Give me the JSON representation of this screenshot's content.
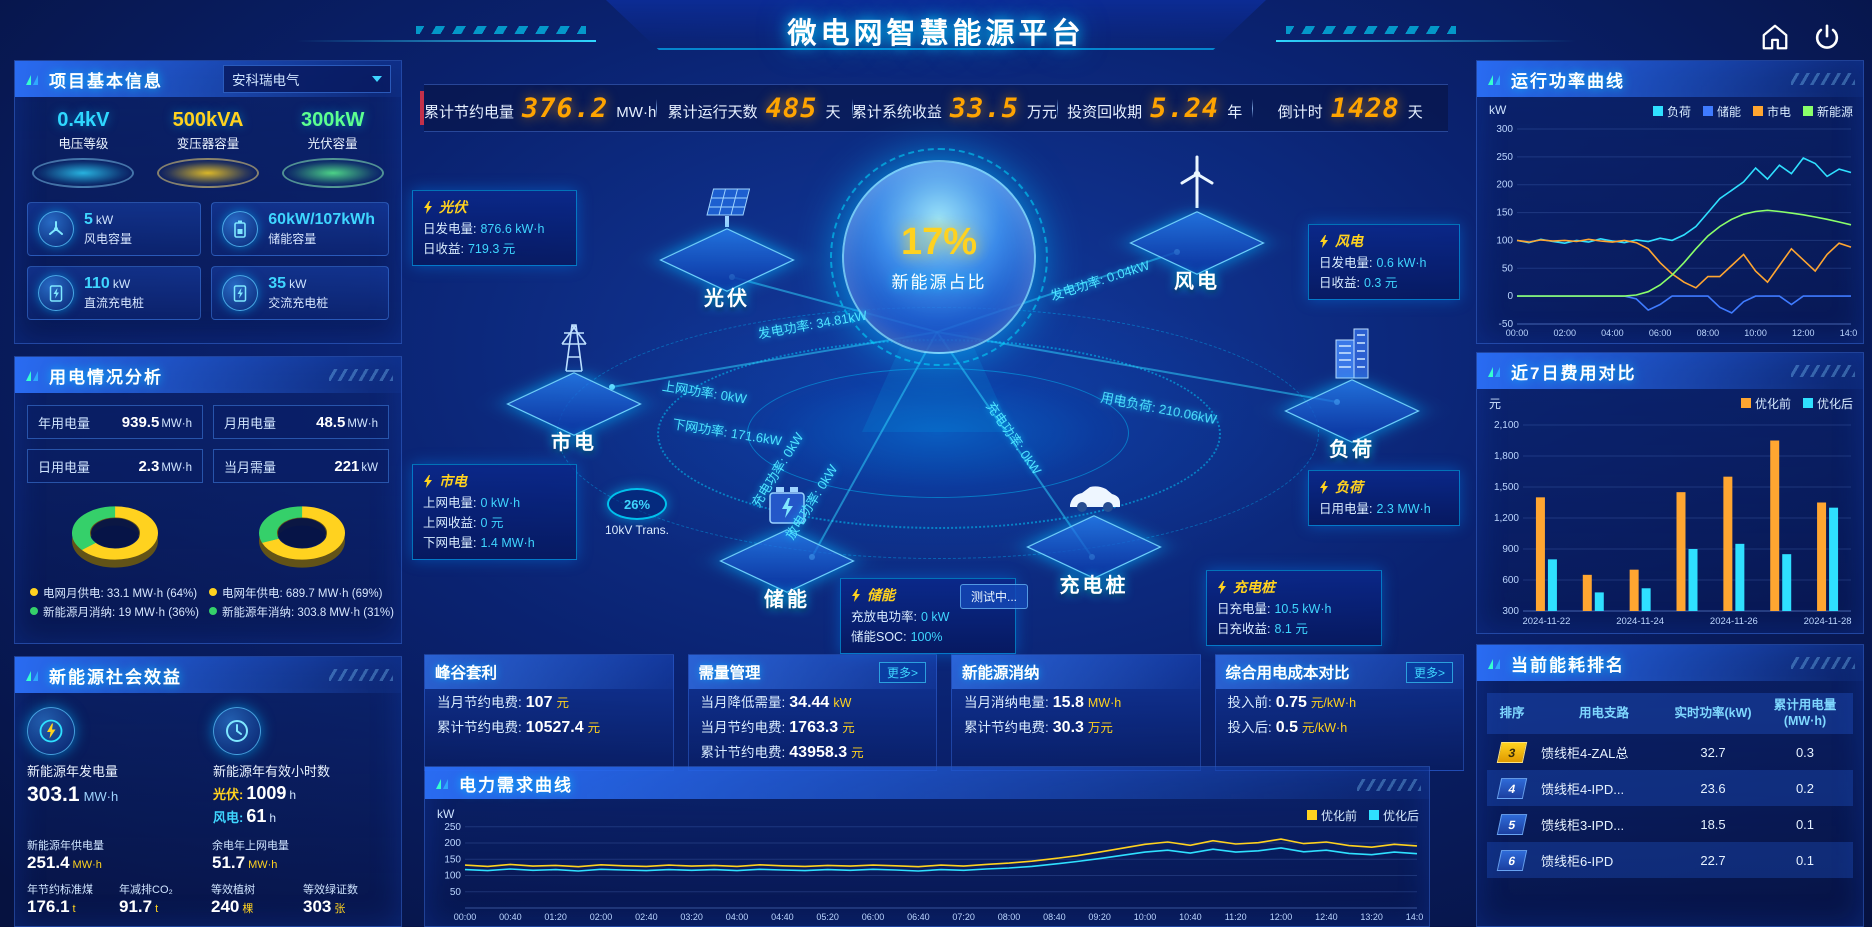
{
  "app": {
    "title": "微电网智慧能源平台"
  },
  "colors": {
    "accent_cyan": "#2fe0ff",
    "accent_yellow": "#ffd21f",
    "accent_orange": "#ffa631",
    "accent_green": "#8aff6a",
    "value_orange": "#ffa400",
    "panel_blue": "#2d73ff",
    "red_accent": "#c2304a"
  },
  "topbar": {
    "items": [
      {
        "label": "累计节约电量",
        "value": "376.2",
        "unit": "MW·h"
      },
      {
        "label": "累计运行天数",
        "value": "485",
        "unit": "天"
      },
      {
        "label": "累计系统收益",
        "value": "33.5",
        "unit": "万元"
      },
      {
        "label": "投资回收期",
        "value": "5.24",
        "unit": "年"
      },
      {
        "label": "倒计时",
        "value": "1428",
        "unit": "天"
      }
    ]
  },
  "left": {
    "basic": {
      "title": "项目基本信息",
      "company": "安科瑞电气",
      "pedestals": [
        {
          "value": "0.4kV",
          "label": "电压等级",
          "color": "#2fd8ff"
        },
        {
          "value": "500kVA",
          "label": "变压器容量",
          "color": "#ffd21f"
        },
        {
          "value": "300kW",
          "label": "光伏容量",
          "color": "#5dff8f"
        }
      ],
      "stats": [
        {
          "value": "5",
          "unit": "kW",
          "label": "风电容量"
        },
        {
          "value": "60kW/107kWh",
          "unit": "",
          "label": "储能容量"
        },
        {
          "value": "110",
          "unit": "kW",
          "label": "直流充电桩"
        },
        {
          "value": "35",
          "unit": "kW",
          "label": "交流充电桩"
        }
      ]
    },
    "usage": {
      "title": "用电情况分析",
      "stats": [
        {
          "label": "年用电量",
          "value": "939.5",
          "unit": "MW·h"
        },
        {
          "label": "月用电量",
          "value": "48.5",
          "unit": "MW·h"
        },
        {
          "label": "日用电量",
          "value": "2.3",
          "unit": "MW·h"
        },
        {
          "label": "当月需量",
          "value": "221",
          "unit": "kW"
        }
      ]
    },
    "benefit": {
      "title": "新能源社会效益",
      "gen": {
        "label": "新能源年发电量",
        "value": "303.1",
        "unit": "MW·h"
      },
      "hours": {
        "label": "新能源年有效小时数",
        "rows": [
          {
            "k": "光伏:",
            "v": "1009",
            "u": "h"
          },
          {
            "k": "风电:",
            "v": "61",
            "u": "h"
          }
        ]
      },
      "metrics": [
        {
          "label": "新能源年供电量",
          "value": "251.4",
          "unit": "MW·h"
        },
        {
          "label": "余电年上网电量",
          "value": "51.7",
          "unit": "MW·h"
        },
        {
          "label": "年节约标准煤",
          "value": "176.1",
          "unit": "t"
        },
        {
          "label": "年减排CO₂",
          "value": "91.7",
          "unit": "t"
        },
        {
          "label": "等效植树",
          "value": "240",
          "unit": "棵"
        },
        {
          "label": "等效绿证数",
          "value": "303",
          "unit": "张"
        }
      ]
    }
  },
  "center": {
    "ratio": {
      "value": "17%",
      "label": "新能源占比"
    },
    "nodes": {
      "pv": "光伏",
      "wind": "风电",
      "grid": "市电",
      "storage": "储能",
      "charger": "充电桩",
      "load": "负荷"
    },
    "cards": {
      "pv": {
        "title": "光伏",
        "rows": [
          {
            "k": "日发电量:",
            "v": "876.6 kW·h"
          },
          {
            "k": "日收益:",
            "v": "719.3 元"
          }
        ]
      },
      "wind": {
        "title": "风电",
        "rows": [
          {
            "k": "日发电量:",
            "v": "0.6 kW·h"
          },
          {
            "k": "日收益:",
            "v": "0.3 元"
          }
        ]
      },
      "grid": {
        "title": "市电",
        "rows": [
          {
            "k": "上网电量:",
            "v": "0 kW·h"
          },
          {
            "k": "上网收益:",
            "v": "0 元"
          },
          {
            "k": "下网电量:",
            "v": "1.4 MW·h"
          }
        ]
      },
      "storage": {
        "title": "储能",
        "rows": [
          {
            "k": "充放电功率:",
            "v": "0 kW"
          },
          {
            "k": "储能SOC:",
            "v": "100%"
          }
        ]
      },
      "charger": {
        "title": "充电桩",
        "rows": [
          {
            "k": "日充电量:",
            "v": "10.5 kW·h"
          },
          {
            "k": "日充收益:",
            "v": "8.1 元"
          }
        ]
      },
      "load": {
        "title": "负荷",
        "rows": [
          {
            "k": "日用电量:",
            "v": "2.3 MW·h"
          }
        ]
      }
    },
    "flows": {
      "pv_gen": "发电功率: 34.81kW",
      "grid_up": "上网功率: 0kW",
      "grid_down": "下网功率: 171.6kW",
      "wind_gen": "发电功率: 0.04kW",
      "load_use": "用电负荷: 210.06kW",
      "storage_charge": "充电功率: 0kW",
      "storage_discharge": "放电功率: 0kW",
      "charger_charge": "充电功率: 0kW"
    },
    "transformer": {
      "percent": "26%",
      "label": "10kV Trans."
    },
    "testing_badge": "测试中...",
    "summary_cards": [
      {
        "title": "峰谷套利",
        "more": "",
        "rows": [
          {
            "k": "当月节约电费:",
            "v": "107",
            "u": "元"
          },
          {
            "k": "累计节约电费:",
            "v": "10527.4",
            "u": "元"
          }
        ]
      },
      {
        "title": "需量管理",
        "more": "更多>",
        "rows": [
          {
            "k": "当月降低需量:",
            "v": "34.44",
            "u": "kW"
          },
          {
            "k": "当月节约电费:",
            "v": "1763.3",
            "u": "元"
          },
          {
            "k": "累计节约电费:",
            "v": "43958.3",
            "u": "元"
          }
        ]
      },
      {
        "title": "新能源消纳",
        "more": "",
        "rows": [
          {
            "k": "当月消纳电量:",
            "v": "15.8",
            "u": "MW·h"
          },
          {
            "k": "累计节约电费:",
            "v": "30.3",
            "u": "万元"
          }
        ]
      },
      {
        "title": "综合用电成本对比",
        "more": "更多>",
        "rows": [
          {
            "k": "投入前:",
            "v": "0.75",
            "u": "元/kW·h"
          },
          {
            "k": "投入后:",
            "v": "0.5",
            "u": "元/kW·h"
          }
        ]
      }
    ]
  },
  "right": {
    "rank": {
      "title": "当前能耗排名",
      "headers": [
        "排序",
        "用电支路",
        "实时功率(kW)",
        "累计用电量(MW·h)"
      ],
      "rows": [
        {
          "rank": "3",
          "branch": "馈线柜4-ZAL总",
          "power": "32.7",
          "energy": "0.3"
        },
        {
          "rank": "4",
          "branch": "馈线柜4-IPD...",
          "power": "23.6",
          "energy": "0.2"
        },
        {
          "rank": "5",
          "branch": "馈线柜3-IPD...",
          "power": "18.5",
          "energy": "0.1"
        },
        {
          "rank": "6",
          "branch": "馈线柜6-IPD",
          "power": "22.7",
          "energy": "0.1"
        }
      ]
    }
  },
  "chart_data": [
    {
      "id": "run-power",
      "type": "line",
      "title": "运行功率曲线",
      "ylabel": "kW",
      "ylim": [
        -50,
        300
      ],
      "yticks": [
        -50,
        0,
        50,
        100,
        150,
        200,
        250,
        300
      ],
      "xticks": [
        "00:00",
        "02:00",
        "04:00",
        "06:00",
        "08:00",
        "10:00",
        "12:00",
        "14:00"
      ],
      "legend_position": "top-right",
      "grid": true,
      "series": [
        {
          "name": "负荷",
          "color": "#2fe0ff",
          "values": [
            100,
            96,
            102,
            98,
            95,
            100,
            97,
            103,
            99,
            96,
            101,
            98,
            104,
            100,
            110,
            125,
            150,
            175,
            190,
            205,
            230,
            210,
            235,
            220,
            248,
            238,
            215,
            228,
            222
          ]
        },
        {
          "name": "储能",
          "color": "#3f7bff",
          "values": [
            0,
            0,
            0,
            0,
            0,
            0,
            0,
            0,
            0,
            0,
            -5,
            -25,
            -15,
            0,
            0,
            0,
            0,
            -20,
            -30,
            -10,
            0,
            0,
            0,
            -15,
            0,
            0,
            0,
            0,
            0
          ]
        },
        {
          "name": "市电",
          "color": "#ffa631",
          "values": [
            100,
            97,
            101,
            99,
            100,
            98,
            102,
            99,
            97,
            100,
            96,
            85,
            60,
            40,
            25,
            15,
            35,
            35,
            55,
            75,
            45,
            25,
            55,
            85,
            65,
            45,
            75,
            95,
            88
          ]
        },
        {
          "name": "新能源",
          "color": "#8aff6a",
          "values": [
            0,
            0,
            0,
            0,
            0,
            0,
            0,
            0,
            0,
            0,
            2,
            8,
            20,
            38,
            60,
            85,
            108,
            125,
            138,
            147,
            152,
            154,
            152,
            149,
            146,
            142,
            138,
            133,
            128
          ]
        }
      ]
    },
    {
      "id": "cost-7d",
      "type": "bar",
      "title": "近7日费用对比",
      "ylabel": "元",
      "ybase": 300,
      "ymax": 2100,
      "yticks": [
        {
          "v": 300,
          "t": "300"
        },
        {
          "v": 600,
          "t": "600"
        },
        {
          "v": 900,
          "t": "900"
        },
        {
          "v": 1200,
          "t": "1,200"
        },
        {
          "v": 1500,
          "t": "1,500"
        },
        {
          "v": 1800,
          "t": "1,800"
        },
        {
          "v": 2100,
          "t": "2,100"
        }
      ],
      "categories": [
        "2024-11-22",
        "2024-11-23",
        "2024-11-24",
        "2024-11-25",
        "2024-11-26",
        "2024-11-27",
        "2024-11-28"
      ],
      "xtick_idx": [
        0,
        2,
        4,
        6
      ],
      "legend_position": "top-right",
      "grid": true,
      "series": [
        {
          "name": "优化前",
          "color": "#ffa631",
          "values": [
            1400,
            650,
            700,
            1450,
            1600,
            1950,
            1350
          ]
        },
        {
          "name": "优化后",
          "color": "#2fe0ff",
          "values": [
            800,
            480,
            520,
            900,
            950,
            850,
            1300
          ]
        }
      ]
    },
    {
      "id": "demand",
      "type": "line",
      "title": "电力需求曲线",
      "ylabel": "kW",
      "ylim": [
        0,
        280
      ],
      "yticks": [
        50,
        100,
        150,
        200,
        250
      ],
      "xticks": [
        "00:00",
        "00:40",
        "01:20",
        "02:00",
        "02:40",
        "03:20",
        "04:00",
        "04:40",
        "05:20",
        "06:00",
        "06:40",
        "07:20",
        "08:00",
        "08:40",
        "09:20",
        "10:00",
        "10:40",
        "11:20",
        "12:00",
        "12:40",
        "13:20",
        "14:00"
      ],
      "legend_position": "top-right",
      "grid": true,
      "series": [
        {
          "name": "优化前",
          "color": "#ffd21f",
          "values": [
            132,
            128,
            134,
            129,
            131,
            127,
            133,
            130,
            128,
            132,
            129,
            131,
            128,
            133,
            130,
            128,
            131,
            129,
            132,
            130,
            127,
            132,
            129,
            134,
            138,
            144,
            152,
            161,
            172,
            184,
            196,
            203,
            193,
            207,
            197,
            201,
            212,
            198,
            203,
            192,
            187,
            196,
            191
          ]
        },
        {
          "name": "优化后",
          "color": "#2fe0ff",
          "values": [
            118,
            115,
            120,
            116,
            118,
            114,
            119,
            117,
            115,
            118,
            116,
            118,
            115,
            119,
            117,
            115,
            118,
            116,
            119,
            117,
            114,
            118,
            116,
            120,
            123,
            128,
            135,
            143,
            152,
            162,
            172,
            178,
            169,
            181,
            172,
            176,
            185,
            173,
            178,
            168,
            164,
            172,
            167
          ]
        }
      ]
    },
    {
      "id": "month-donut",
      "type": "pie",
      "slices": [
        {
          "name": "电网月供电",
          "value": 33.1,
          "unit": "MW·h",
          "percent": 64,
          "color": "#ffd21f",
          "label": "电网月供电: 33.1 MW·h (64%)"
        },
        {
          "name": "新能源月消纳",
          "value": 19,
          "unit": "MW·h",
          "percent": 36,
          "color": "#35d06a",
          "label": "新能源月消纳: 19 MW·h (36%)"
        }
      ]
    },
    {
      "id": "year-donut",
      "type": "pie",
      "slices": [
        {
          "name": "电网年供电",
          "value": 689.7,
          "unit": "MW·h",
          "percent": 69,
          "color": "#ffd21f",
          "label": "电网年供电: 689.7 MW·h (69%)"
        },
        {
          "name": "新能源年消纳",
          "value": 303.8,
          "unit": "MW·h",
          "percent": 31,
          "color": "#35d06a",
          "label": "新能源年消纳: 303.8 MW·h (31%)"
        }
      ]
    }
  ]
}
